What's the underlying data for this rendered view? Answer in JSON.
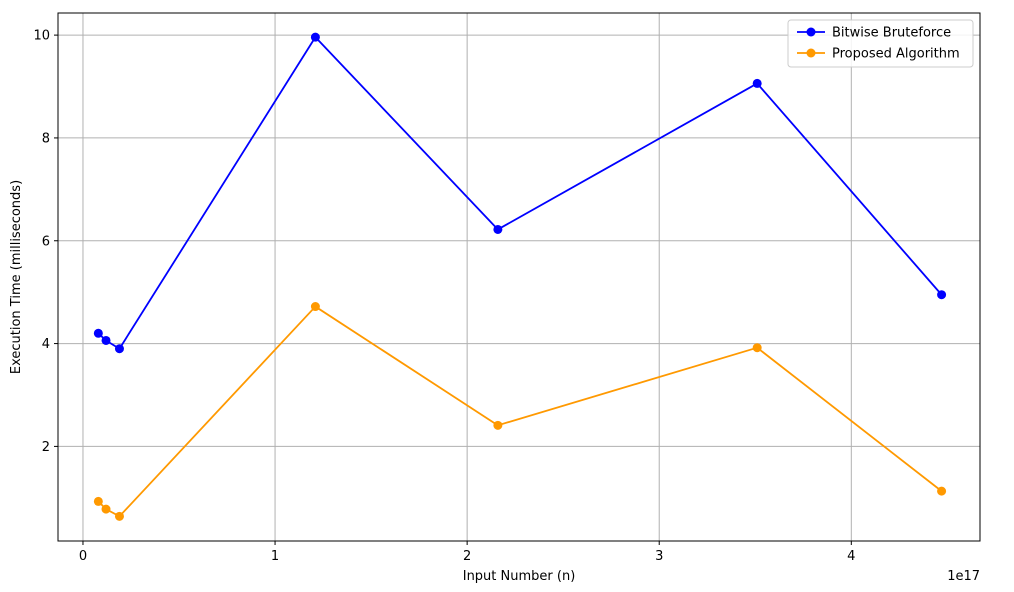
{
  "chart_data": {
    "type": "line",
    "xlabel": "Input Number (n)",
    "ylabel": "Execution Time (milliseconds)",
    "x_offset_text": "1e17",
    "x_ticks": [
      0,
      1,
      2,
      3,
      4
    ],
    "x_tick_labels": [
      "0",
      "1",
      "2",
      "3",
      "4"
    ],
    "y_ticks": [
      2,
      4,
      6,
      8,
      10
    ],
    "y_tick_labels": [
      "2",
      "4",
      "6",
      "8",
      "10"
    ],
    "xlim": [
      -0.13,
      4.67
    ],
    "ylim": [
      0.16,
      10.43
    ],
    "grid": true,
    "legend_position": "top-right",
    "x": [
      0.08,
      0.12,
      0.19,
      1.21,
      2.16,
      3.51,
      4.47
    ],
    "series": [
      {
        "name": "Bitwise Bruteforce",
        "color": "#0000ff",
        "values": [
          4.2,
          4.06,
          3.9,
          9.96,
          6.22,
          9.06,
          4.95
        ]
      },
      {
        "name": "Proposed Algorithm",
        "color": "#ff9900",
        "values": [
          0.93,
          0.78,
          0.64,
          4.72,
          2.41,
          3.92,
          1.13
        ]
      }
    ]
  }
}
